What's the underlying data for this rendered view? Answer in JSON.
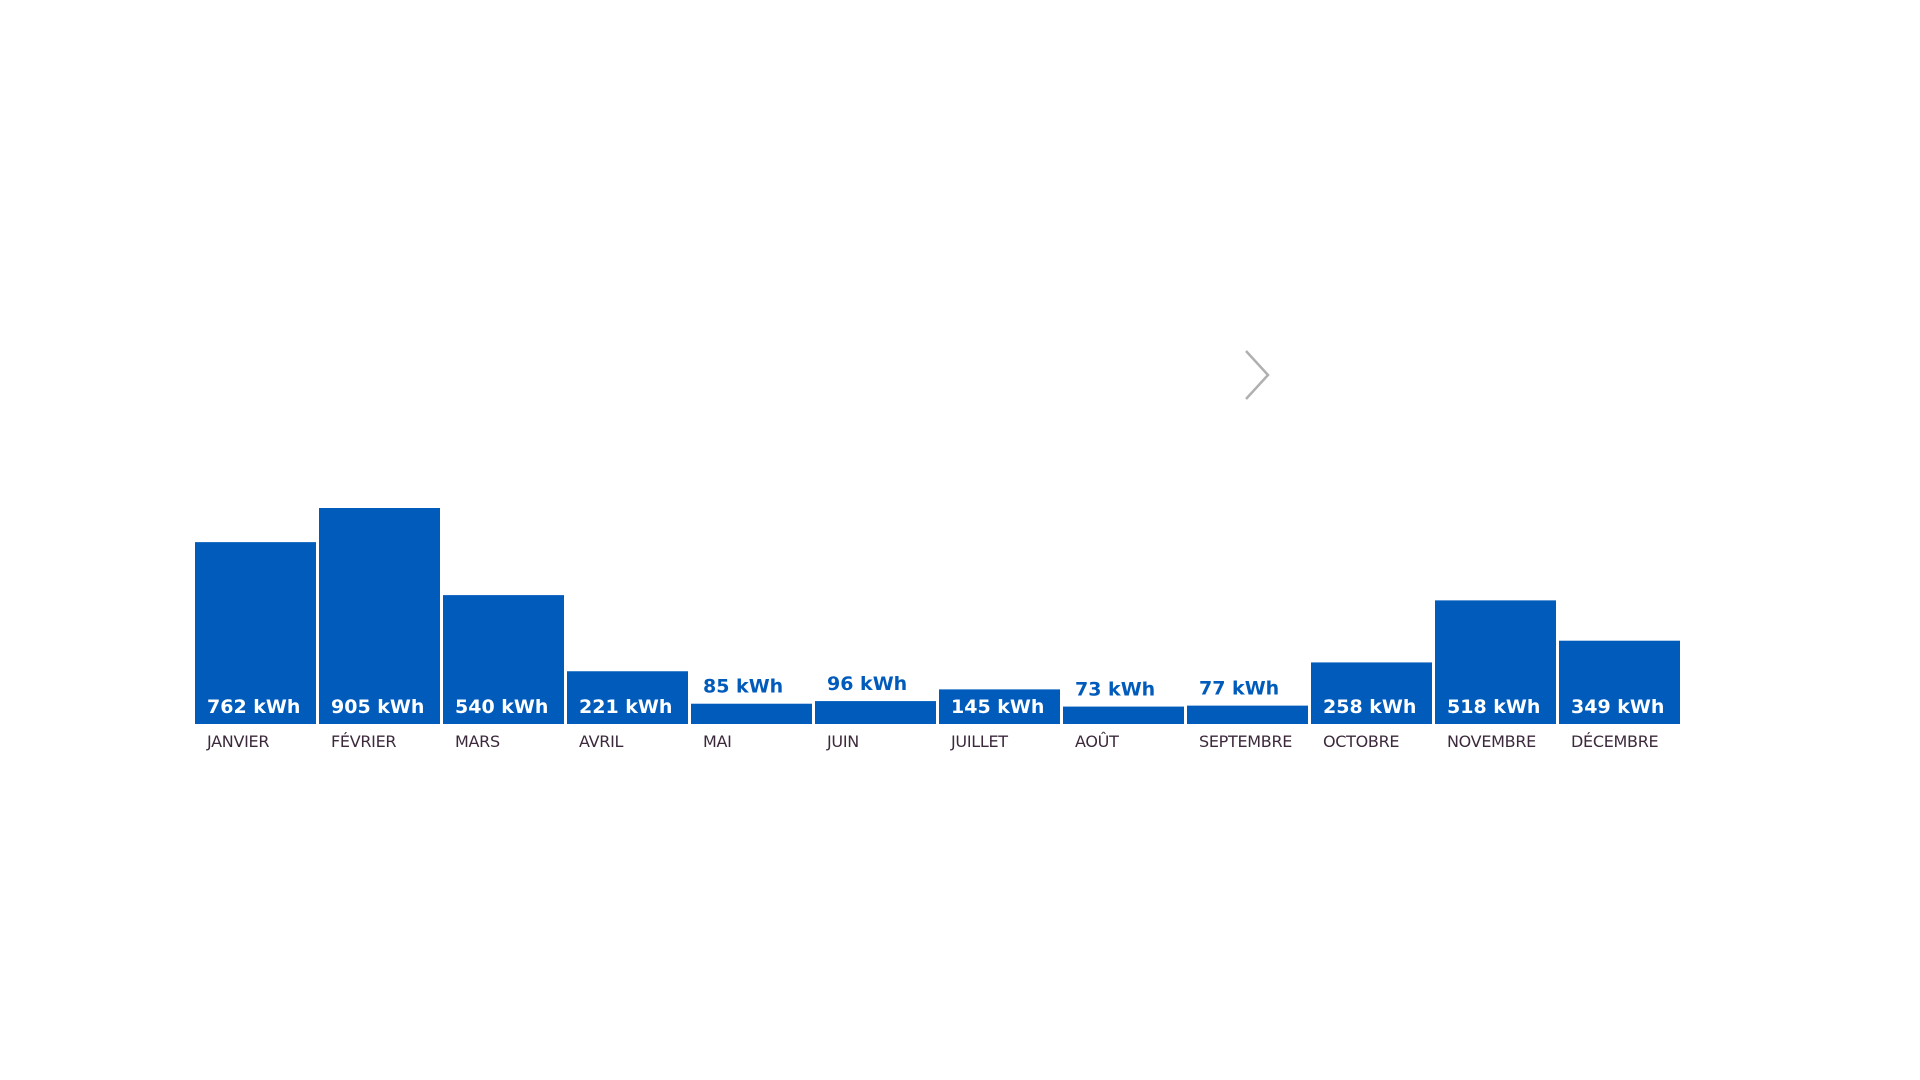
{
  "navigation": {
    "next_icon": "chevron-right-icon"
  },
  "colors": {
    "bar": "#005bbb",
    "label_inside": "#ffffff",
    "label_outside": "#005bbb",
    "month_label": "#3c2a3c",
    "chevron": "#b0b0b0"
  },
  "chart_data": {
    "type": "bar",
    "title": "",
    "xlabel": "",
    "ylabel": "",
    "unit": "kWh",
    "ylim": [
      0,
      905
    ],
    "grid": false,
    "categories": [
      "JANVIER",
      "FÉVRIER",
      "MARS",
      "AVRIL",
      "MAI",
      "JUIN",
      "JUILLET",
      "AOÛT",
      "SEPTEMBRE",
      "OCTOBRE",
      "NOVEMBRE",
      "DÉCEMBRE"
    ],
    "values": [
      762,
      905,
      540,
      221,
      85,
      96,
      145,
      73,
      77,
      258,
      518,
      349
    ],
    "data_labels": [
      "762 kWh",
      "905 kWh",
      "540 kWh",
      "221 kWh",
      "85 kWh",
      "96 kWh",
      "145 kWh",
      "73 kWh",
      "77 kWh",
      "258 kWh",
      "518 kWh",
      "349 kWh"
    ]
  }
}
